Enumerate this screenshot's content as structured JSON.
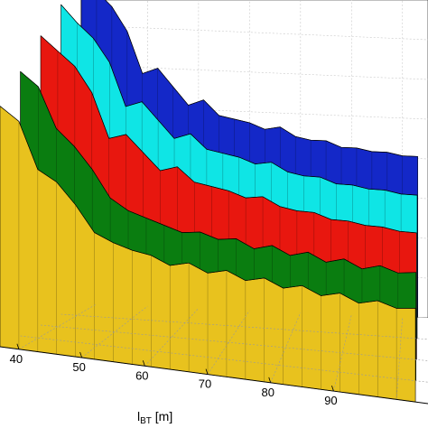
{
  "chart_data": {
    "type": "surface3d",
    "xlabel": {
      "main": "l",
      "sub": "BT",
      "unit": " [m]"
    },
    "xticks": [
      40,
      50,
      60,
      70,
      80,
      90
    ],
    "xlim": [
      37,
      105
    ],
    "grid": true,
    "view": "3D perspective, x axis along bottom front edge",
    "colors": [
      "#e8c21e",
      "#0a7d10",
      "#e8170f",
      "#0fe5e5",
      "#1428c8"
    ],
    "series": [
      {
        "name": "",
        "color": "#e8c21e",
        "x": [
          37,
          40,
          43,
          46,
          49,
          52,
          55,
          58,
          61,
          64,
          67,
          70,
          73,
          76,
          79,
          82,
          85,
          88,
          91,
          94,
          97,
          100,
          103
        ],
        "values": [
          0.95,
          0.9,
          0.72,
          0.68,
          0.6,
          0.5,
          0.47,
          0.45,
          0.44,
          0.41,
          0.43,
          0.4,
          0.42,
          0.39,
          0.41,
          0.38,
          0.4,
          0.37,
          0.39,
          0.36,
          0.38,
          0.36,
          0.37
        ]
      },
      {
        "name": "",
        "color": "#0a7d10",
        "x": [
          37,
          40,
          43,
          46,
          49,
          52,
          55,
          58,
          61,
          64,
          67,
          70,
          73,
          76,
          79,
          82,
          85,
          88,
          91,
          94,
          97,
          100,
          103
        ],
        "values": [
          1.0,
          0.95,
          0.8,
          0.74,
          0.66,
          0.56,
          0.52,
          0.5,
          0.48,
          0.46,
          0.47,
          0.45,
          0.46,
          0.43,
          0.45,
          0.42,
          0.44,
          0.41,
          0.43,
          0.4,
          0.42,
          0.4,
          0.41
        ]
      },
      {
        "name": "",
        "color": "#e8170f",
        "x": [
          37,
          40,
          43,
          46,
          49,
          52,
          55,
          58,
          61,
          64,
          67,
          70,
          73,
          76,
          79,
          82,
          85,
          88,
          91,
          94,
          97,
          100,
          103
        ],
        "values": [
          1.05,
          1.0,
          0.95,
          0.86,
          0.7,
          0.72,
          0.66,
          0.6,
          0.62,
          0.57,
          0.56,
          0.55,
          0.53,
          0.54,
          0.51,
          0.5,
          0.5,
          0.48,
          0.48,
          0.47,
          0.47,
          0.46,
          0.46
        ]
      },
      {
        "name": "",
        "color": "#0fe5e5",
        "x": [
          37,
          40,
          43,
          46,
          49,
          52,
          55,
          58,
          61,
          64,
          67,
          70,
          73,
          76,
          79,
          82,
          85,
          88,
          91,
          94,
          97,
          100,
          103
        ],
        "values": [
          1.08,
          1.02,
          0.97,
          0.89,
          0.74,
          0.76,
          0.7,
          0.64,
          0.66,
          0.61,
          0.6,
          0.59,
          0.57,
          0.58,
          0.55,
          0.54,
          0.54,
          0.52,
          0.52,
          0.51,
          0.51,
          0.5,
          0.5
        ]
      },
      {
        "name": "",
        "color": "#1428c8",
        "x": [
          37,
          40,
          43,
          46,
          49,
          52,
          55,
          58,
          61,
          64,
          67,
          70,
          73,
          76,
          79,
          82,
          85,
          88,
          91,
          94,
          97,
          100,
          103
        ],
        "values": [
          1.1,
          1.05,
          1.0,
          0.92,
          0.78,
          0.8,
          0.74,
          0.68,
          0.7,
          0.65,
          0.64,
          0.63,
          0.61,
          0.62,
          0.59,
          0.58,
          0.58,
          0.56,
          0.56,
          0.55,
          0.55,
          0.54,
          0.54
        ]
      }
    ]
  }
}
